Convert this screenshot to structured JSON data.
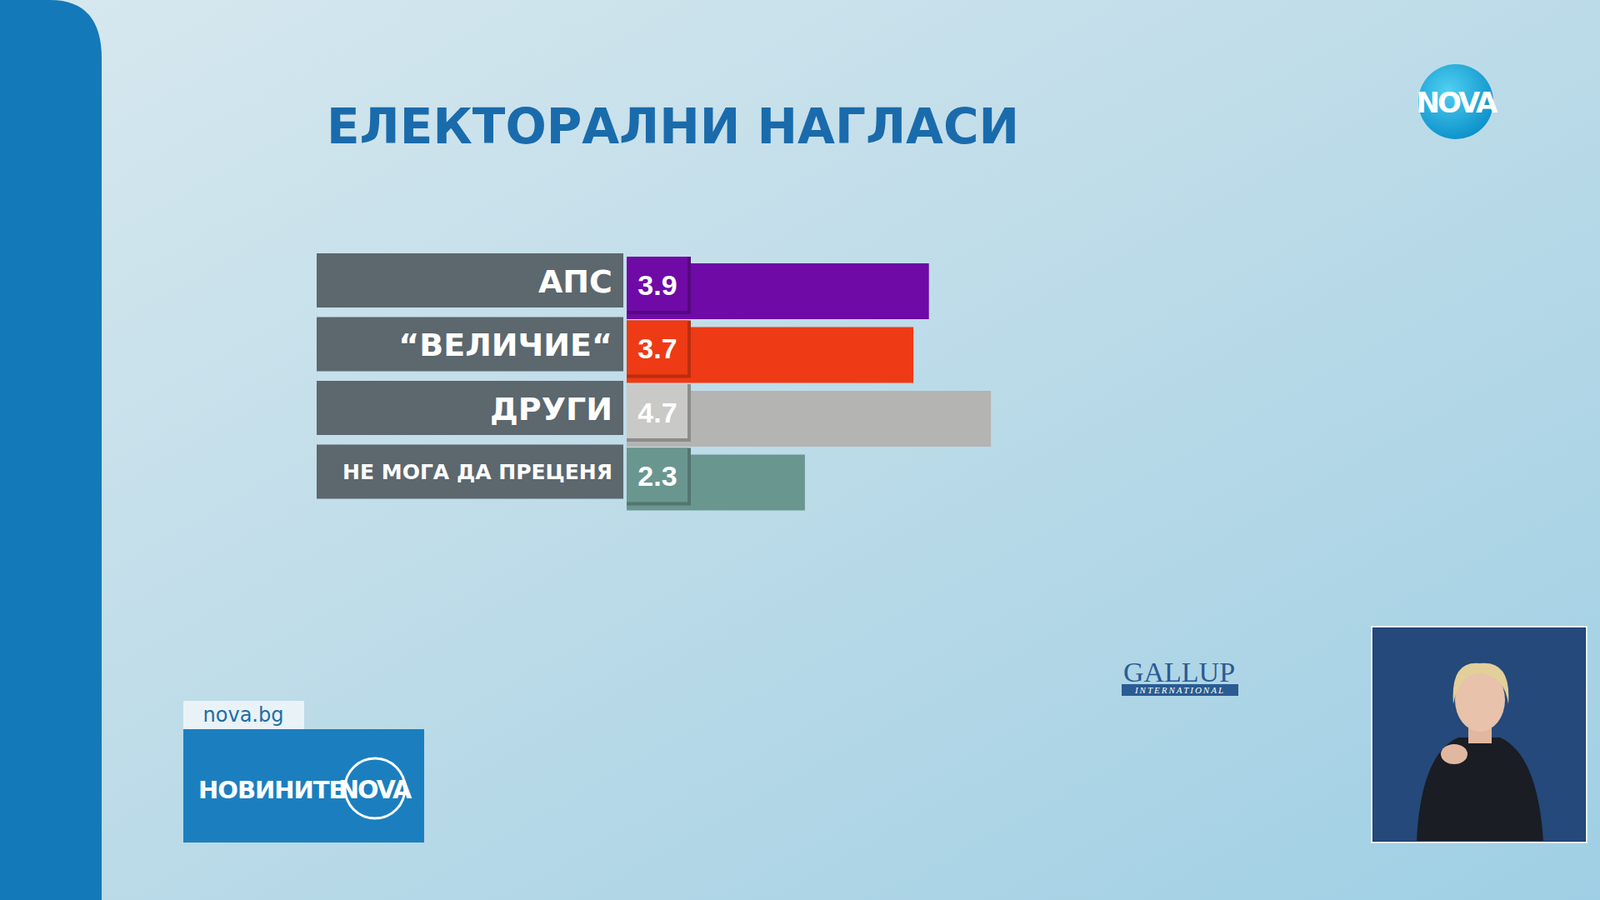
{
  "chart_data": {
    "type": "bar",
    "orientation": "horizontal",
    "title": "ЕЛЕКТОРАЛНИ НАГЛАСИ",
    "categories": [
      "АПС",
      "“ВЕЛИЧИЕ“",
      "ДРУГИ",
      "НЕ МОГА ДА ПРЕЦЕНЯ"
    ],
    "values": [
      3.9,
      3.7,
      4.7,
      2.3
    ],
    "colors": [
      "#6f0aa6",
      "#ee3a15",
      "#b4b4b2",
      "#6a9690"
    ],
    "xlim": [
      0,
      5
    ],
    "tick_labels": false,
    "data_labels": true
  },
  "branding": {
    "logo": "NOVA",
    "site": "nova.bg",
    "show": "НОВИНИТЕ",
    "show_logo": "NOVA",
    "source": "GALLUP",
    "source_sub": "INTERNATIONAL"
  }
}
